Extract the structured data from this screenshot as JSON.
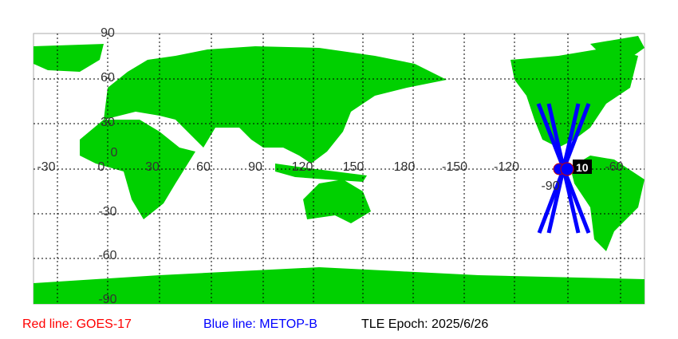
{
  "map": {
    "lat_labels": [
      "90",
      "60",
      "30",
      "0",
      "-30",
      "-60",
      "-90"
    ],
    "lon_labels": [
      "-30",
      "0",
      "30",
      "60",
      "90",
      "120",
      "150",
      "180",
      "-150",
      "-120",
      "-90",
      "-60"
    ],
    "marker_label": "10",
    "colors": {
      "land": "#00d000",
      "ocean": "#ffffff",
      "grid": "#000000",
      "track_blue": "#0000ff",
      "track_red": "#ff0000",
      "marker": "#0000ff"
    }
  },
  "legend": {
    "red": "Red line: GOES-17",
    "blue": "Blue line: METOP-B",
    "epoch": "TLE Epoch: 2025/6/26"
  }
}
